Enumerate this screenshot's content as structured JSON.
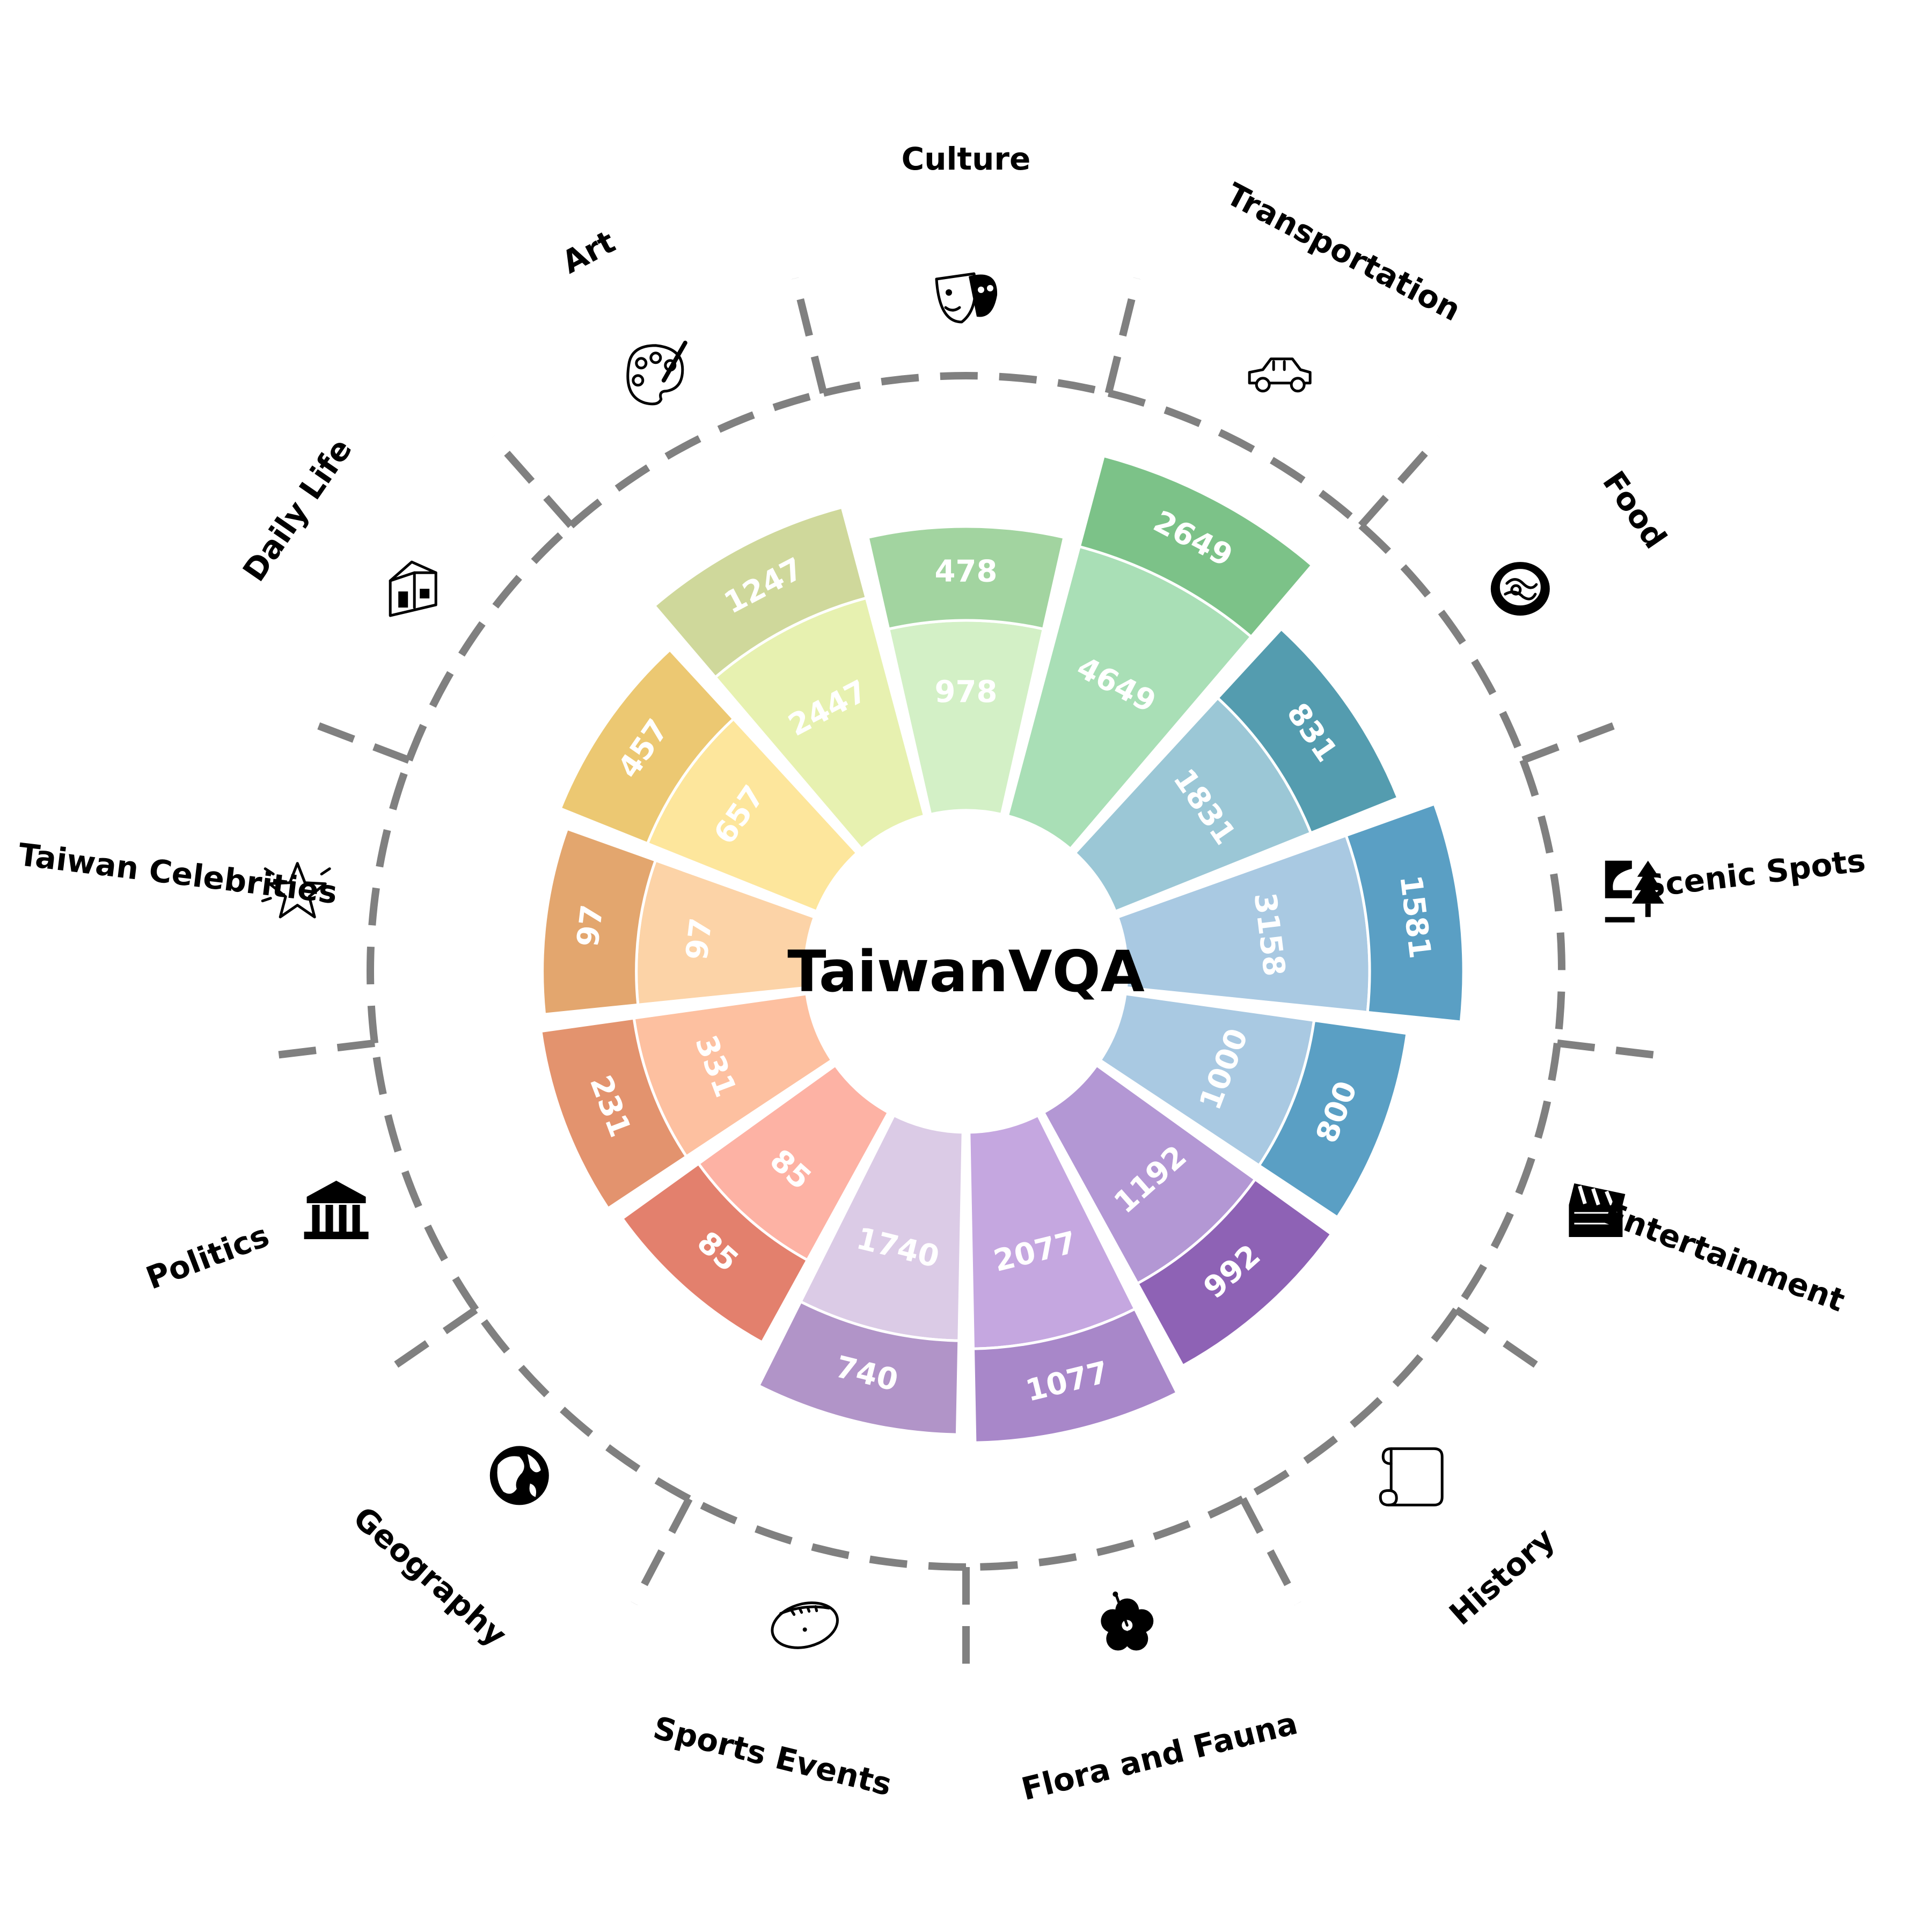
{
  "chart_data": {
    "type": "bar",
    "subtype": "radial-stacked",
    "title": "TaiwanVQA",
    "categories": [
      "Culture",
      "Transportation",
      "Food",
      "Scenic Spots",
      "Entertainment",
      "History",
      "Flora and Fauna",
      "Sports Events",
      "Geography",
      "Politics",
      "Taiwan Celebrities",
      "Daily Life",
      "Art"
    ],
    "series": [
      {
        "values": [
          978,
          4649,
          1831,
          3158,
          1000,
          1192,
          2077,
          1740,
          85,
          331,
          97,
          657,
          2447
        ]
      },
      {
        "values": [
          478,
          2649,
          831,
          1581,
          800,
          992,
          1077,
          740,
          85,
          231,
          97,
          457,
          1247
        ]
      }
    ],
    "colors": {
      "inner": [
        "#d3f0c6",
        "#a9dfb6",
        "#9bc7d6",
        "#a9c9e2",
        "#a9c9e2",
        "#b397d4",
        "#c5a7e0",
        "#dbcbe6",
        "#fdb2a4",
        "#fdc0a0",
        "#fcd3a7",
        "#fde69c",
        "#e7f1b0"
      ],
      "outer": [
        "#a2d4a0",
        "#7cc288",
        "#549caf",
        "#5a9fc4",
        "#5a9fc4",
        "#8e62b5",
        "#a887c9",
        "#b194c8",
        "#e3806d",
        "#e3936e",
        "#e3a66e",
        "#ecc872",
        "#cfd89b"
      ]
    },
    "icons": [
      "theater-masks-icon",
      "car-icon",
      "food-bowl-icon",
      "scenic-mountain-tree-icon",
      "clapperboard-icon",
      "scroll-icon",
      "hibiscus-flower-icon",
      "football-icon",
      "globe-icon",
      "government-building-icon",
      "star-icon",
      "house-icon",
      "palette-icon"
    ]
  }
}
